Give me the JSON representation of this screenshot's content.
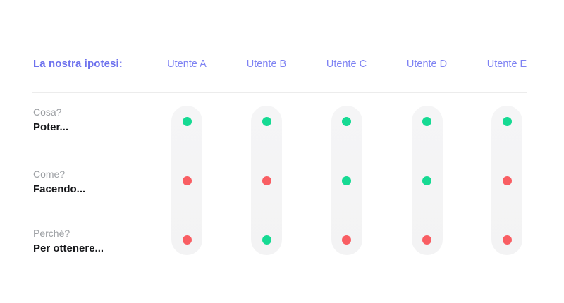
{
  "matrix": {
    "corner_label": "La nostra ipotesi:",
    "columns": [
      "Utente A",
      "Utente B",
      "Utente C",
      "Utente D",
      "Utente E"
    ],
    "rows": [
      {
        "question": "Cosa?",
        "answer": "Poter...",
        "dots": [
          "green",
          "green",
          "green",
          "green",
          "green"
        ]
      },
      {
        "question": "Come?",
        "answer": "Facendo...",
        "dots": [
          "red",
          "red",
          "green",
          "green",
          "red"
        ]
      },
      {
        "question": "Perché?",
        "answer": "Per ottenere...",
        "dots": [
          "red",
          "green",
          "red",
          "red",
          "red"
        ]
      }
    ]
  },
  "chart_data": {
    "type": "table",
    "title": "La nostra ipotesi:",
    "columns": [
      "Utente A",
      "Utente B",
      "Utente C",
      "Utente D",
      "Utente E"
    ],
    "row_labels": [
      "Cosa? Poter...",
      "Come? Facendo...",
      "Perché? Per ottenere..."
    ],
    "cell_values": [
      [
        "green",
        "green",
        "green",
        "green",
        "green"
      ],
      [
        "red",
        "red",
        "green",
        "green",
        "red"
      ],
      [
        "red",
        "green",
        "red",
        "red",
        "red"
      ]
    ]
  },
  "colors": {
    "accent_purple": "#6e72ee",
    "header_purple": "#7e82f3",
    "question_gray": "#9da0a4",
    "answer_black": "#16171a",
    "dot_green": "#16da93",
    "dot_red": "#f95e63",
    "pill_bg": "#f3f3f4",
    "divider": "#ececec"
  }
}
